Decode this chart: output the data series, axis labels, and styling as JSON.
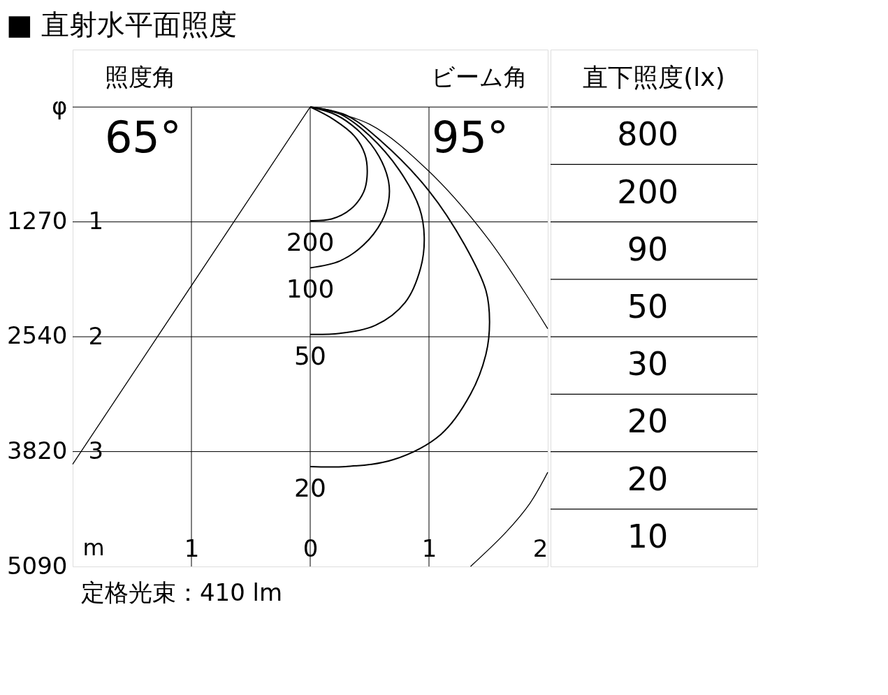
{
  "chart_data": [
    {
      "type": "line",
      "title": "■ 直射水平面照度",
      "xlabel": "m",
      "xlim": [
        -2,
        2
      ],
      "xticks": [
        {
          "value": -2,
          "label": null
        },
        {
          "value": -1,
          "label": "1"
        },
        0,
        1,
        2
      ],
      "ylim": [
        4,
        -0.5
      ],
      "yticks": [
        {
          "value": 0,
          "label": null
        },
        1,
        2,
        3
      ],
      "y2lim": [
        5090,
        -636
      ],
      "y2ticks": [
        {
          "value": 0,
          "label": "φ"
        },
        1270,
        2540,
        3820,
        5090
      ],
      "grid": true,
      "line_style": "solid",
      "series": [
        {
          "name": "200",
          "color": "#000000",
          "x": [
            0,
            0.2,
            0.37,
            0.46,
            0.48,
            0.45,
            0.34,
            0.18,
            0
          ],
          "values": [
            0,
            0.11,
            0.25,
            0.41,
            0.58,
            0.74,
            0.89,
            0.975,
            0.99
          ]
        },
        {
          "name": "100",
          "color": "#000000",
          "x": [
            0,
            0.22,
            0.42,
            0.58,
            0.66,
            0.66,
            0.6,
            0.45,
            0.25,
            0
          ],
          "values": [
            0,
            0.07,
            0.22,
            0.43,
            0.65,
            0.82,
            1.0,
            1.2,
            1.34,
            1.4
          ]
        },
        {
          "name": "50",
          "color": "#000000",
          "x": [
            0,
            0.25,
            0.5,
            0.75,
            0.92,
            0.96,
            0.93,
            0.8,
            0.55,
            0.25,
            0
          ],
          "values": [
            0,
            0.06,
            0.25,
            0.55,
            0.88,
            1.13,
            1.4,
            1.7,
            1.9,
            1.97,
            1.98
          ]
        },
        {
          "name": "20",
          "color": "#000000",
          "x": [
            0,
            0.3,
            0.6,
            1.0,
            1.3,
            1.48,
            1.51,
            1.48,
            1.35,
            1.1,
            0.7,
            0.3,
            0
          ],
          "values": [
            0,
            0.07,
            0.3,
            0.73,
            1.2,
            1.6,
            1.87,
            2.15,
            2.5,
            2.85,
            3.07,
            3.13,
            3.13
          ]
        },
        {
          "color": "#000000",
          "x": [
            0,
            0.5,
            1.0,
            1.5,
            2.0
          ],
          "values": [
            0,
            0.15,
            0.56,
            1.15,
            1.93
          ]
        },
        {
          "color": "#000000",
          "x": [
            2,
            1.85,
            1.65,
            1.35
          ],
          "values": [
            3.18,
            3.45,
            3.7,
            4.0
          ]
        },
        {
          "color": "#000000",
          "x": [
            0,
            -2
          ],
          "values": [
            0,
            3.11
          ]
        }
      ],
      "annotations": [
        "照度角",
        "ビーム角",
        "65°",
        "95°",
        "定格光束：410 lm"
      ]
    },
    {
      "type": "other",
      "title": "直下照度(lx)",
      "values": [
        800,
        200,
        90,
        50,
        30,
        20,
        20,
        10
      ],
      "data_labels": true
    }
  ]
}
